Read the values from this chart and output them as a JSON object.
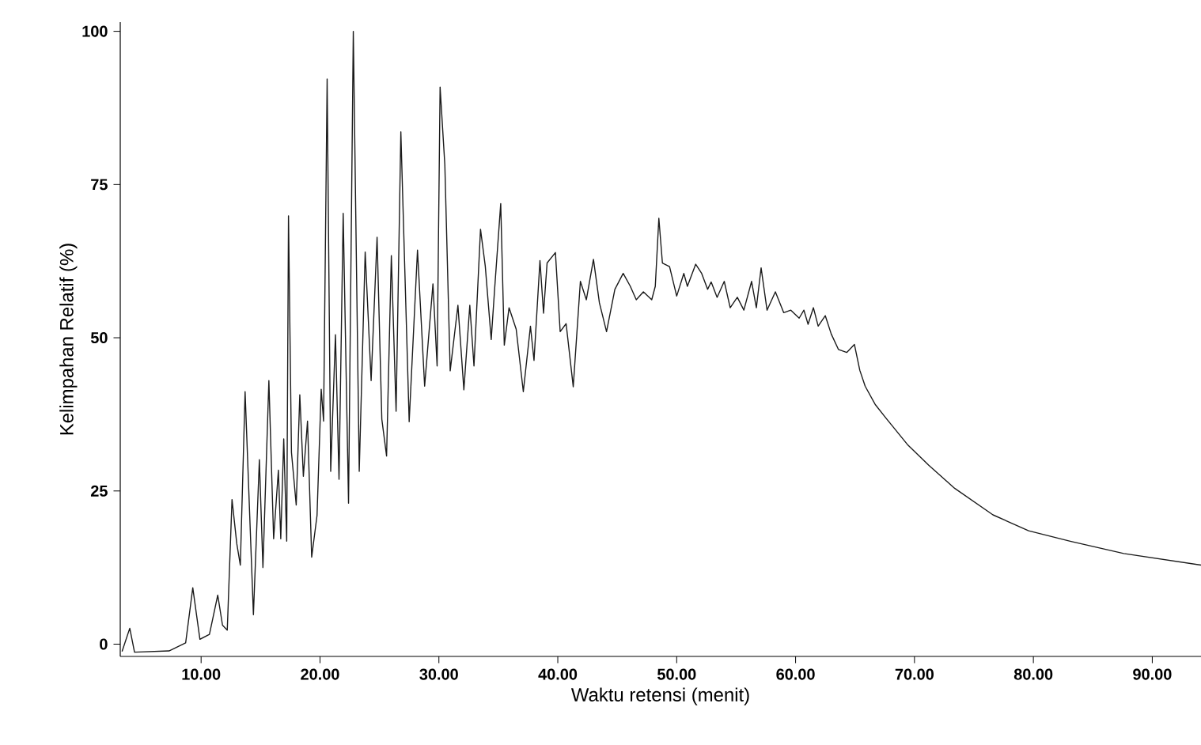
{
  "chart_data": {
    "type": "line",
    "xlabel": "Waktu retensi (menit)",
    "ylabel": "Kelimpahan Relatif (%)",
    "xlim": [
      3.2,
      94.1
    ],
    "ylim": [
      -2,
      101.5
    ],
    "xticks": [
      {
        "value": 10,
        "label": "10.00"
      },
      {
        "value": 20,
        "label": "20.00"
      },
      {
        "value": 30,
        "label": "30.00"
      },
      {
        "value": 40,
        "label": "40.00"
      },
      {
        "value": 50,
        "label": "50.00"
      },
      {
        "value": 60,
        "label": "60.00"
      },
      {
        "value": 70,
        "label": "70.00"
      },
      {
        "value": 80,
        "label": "80.00"
      },
      {
        "value": 90,
        "label": "90.00"
      }
    ],
    "yticks": [
      0,
      25,
      50,
      75,
      100
    ],
    "grid": false,
    "marker": "none",
    "line_style": "solid",
    "series": [
      {
        "color": "#1a1a1a",
        "x": [
          3.35,
          4.0,
          4.4,
          7.3,
          8.7,
          9.3,
          9.9,
          10.7,
          11.4,
          11.8,
          12.2,
          12.6,
          13.0,
          13.3,
          13.7,
          14.4,
          14.9,
          15.2,
          15.7,
          16.1,
          16.5,
          16.7,
          16.95,
          17.2,
          17.35,
          17.6,
          18.0,
          18.3,
          18.6,
          18.95,
          19.3,
          19.75,
          20.1,
          20.3,
          20.6,
          20.9,
          21.3,
          21.6,
          21.95,
          22.4,
          22.8,
          23.3,
          23.8,
          24.3,
          24.8,
          25.2,
          25.6,
          26.0,
          26.4,
          26.8,
          27.5,
          28.2,
          28.8,
          29.5,
          29.85,
          30.1,
          30.5,
          30.95,
          31.6,
          32.1,
          32.6,
          32.95,
          33.5,
          33.9,
          34.4,
          34.7,
          35.2,
          35.5,
          35.9,
          36.5,
          37.1,
          37.7,
          38.0,
          38.5,
          38.8,
          39.1,
          39.8,
          40.2,
          40.7,
          41.3,
          41.9,
          42.4,
          43.0,
          43.5,
          44.1,
          44.8,
          45.5,
          46.1,
          46.6,
          47.2,
          47.9,
          48.2,
          48.5,
          48.8,
          49.4,
          50.0,
          50.6,
          50.9,
          51.6,
          52.1,
          52.6,
          52.9,
          53.4,
          54.0,
          54.5,
          55.1,
          55.65,
          56.3,
          56.7,
          57.1,
          57.6,
          58.3,
          59.0,
          59.6,
          60.3,
          60.7,
          61.05,
          61.5,
          61.9,
          62.5,
          63.0,
          63.6,
          64.3,
          64.95,
          65.4,
          65.85,
          66.7,
          67.6,
          69.4,
          71.2,
          73.4,
          76.6,
          79.6,
          83.1,
          87.6,
          94.1
        ],
        "values": [
          -1.2,
          2.6,
          -1.3,
          -1.1,
          0.2,
          9.2,
          0.8,
          1.6,
          8.0,
          3.1,
          2.3,
          23.6,
          16.4,
          12.9,
          41.2,
          4.8,
          30.1,
          12.5,
          43.0,
          17.2,
          28.4,
          17.2,
          33.5,
          16.8,
          69.9,
          31.3,
          22.7,
          40.7,
          27.4,
          36.4,
          14.2,
          21.0,
          41.6,
          36.4,
          92.2,
          28.2,
          50.5,
          26.9,
          70.3,
          23.0,
          100,
          28.2,
          64.0,
          43.0,
          66.4,
          36.7,
          30.7,
          63.4,
          38.0,
          83.6,
          36.3,
          64.3,
          42.1,
          58.8,
          45.4,
          90.9,
          78.2,
          44.6,
          55.3,
          41.5,
          55.3,
          45.4,
          67.7,
          61.7,
          49.7,
          58.3,
          71.9,
          48.8,
          54.9,
          51.4,
          41.2,
          51.9,
          46.3,
          62.6,
          54.0,
          62.2,
          63.9,
          51.0,
          52.3,
          42.0,
          59.2,
          56.2,
          62.8,
          55.7,
          51.0,
          57.9,
          60.5,
          58.4,
          56.2,
          57.5,
          56.2,
          58.4,
          69.5,
          62.2,
          61.6,
          56.8,
          60.5,
          58.4,
          62.0,
          60.5,
          57.9,
          59.1,
          56.6,
          59.2,
          54.9,
          56.6,
          54.5,
          59.2,
          54.9,
          61.4,
          54.5,
          57.5,
          54.1,
          54.5,
          53.2,
          54.5,
          52.2,
          54.9,
          51.9,
          53.6,
          50.6,
          48.1,
          47.6,
          48.9,
          44.7,
          42.1,
          39.1,
          36.9,
          32.6,
          29.2,
          25.4,
          21.1,
          18.5,
          16.8,
          14.8,
          12.9
        ]
      }
    ]
  }
}
